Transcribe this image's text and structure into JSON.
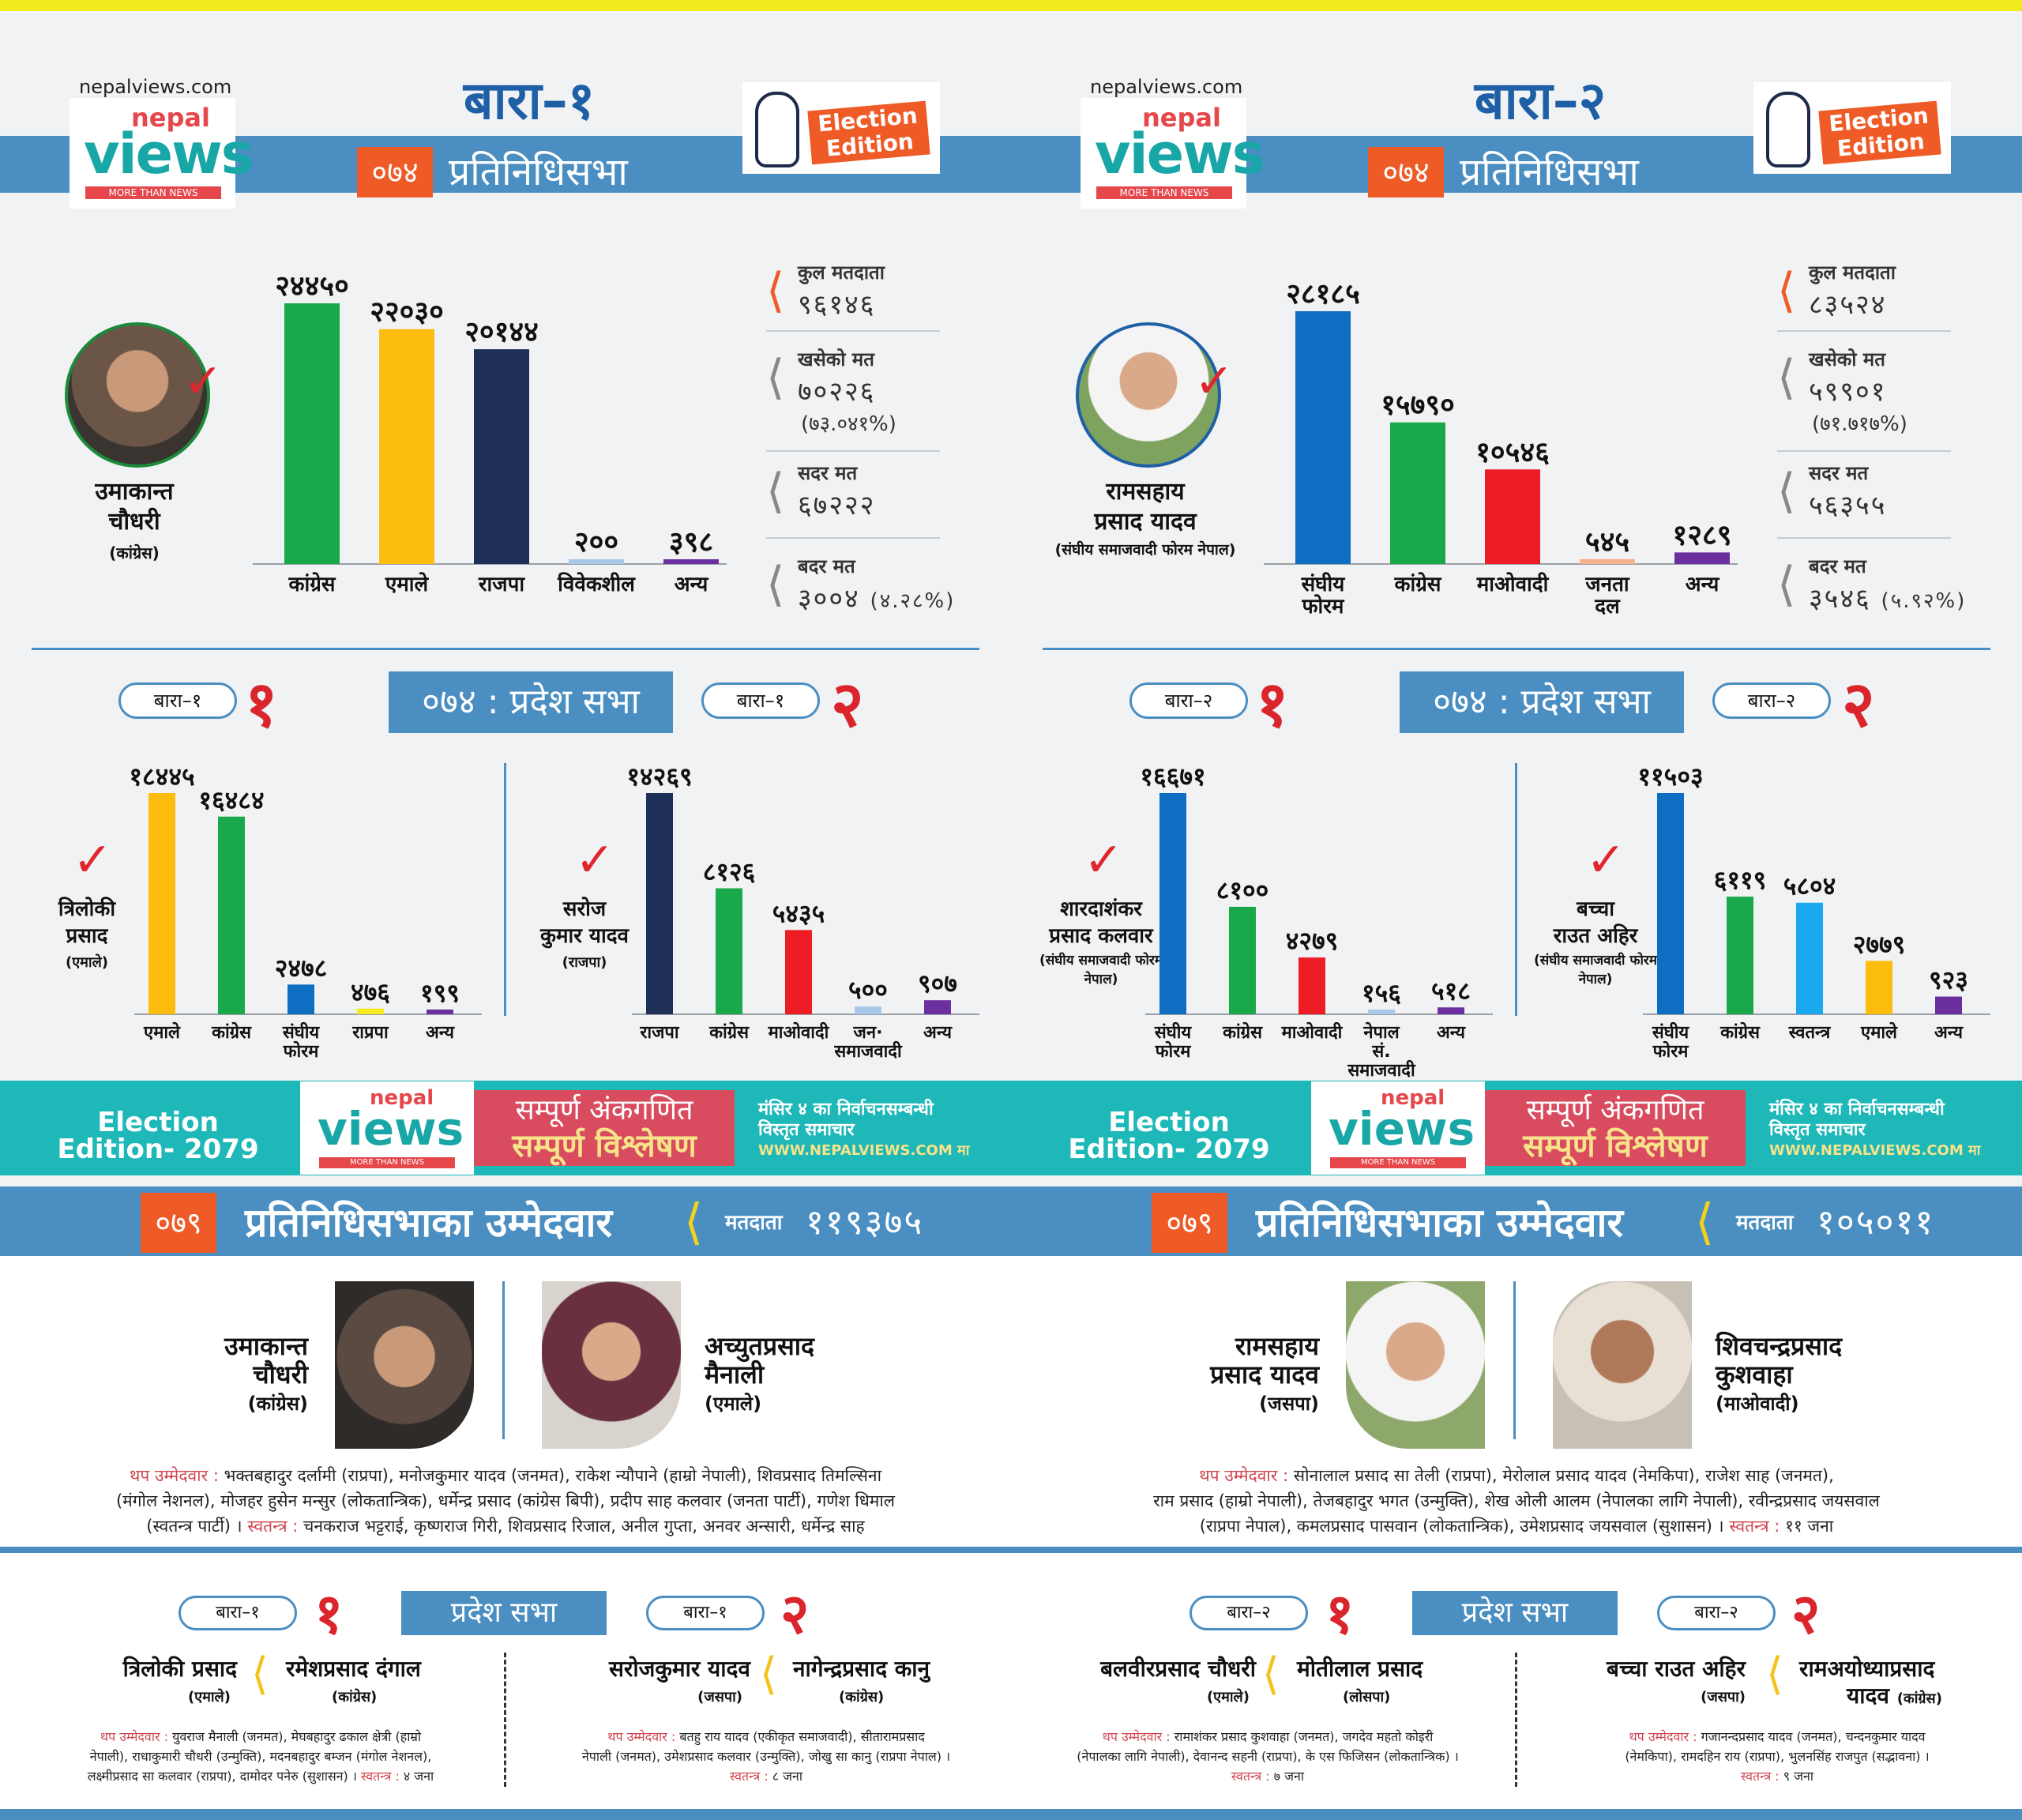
{
  "site": "nepalviews.com",
  "logo": {
    "nepal": "nepal",
    "views": "views",
    "tagline": "MORE THAN NEWS"
  },
  "election_tag": "Election Edition",
  "panels": [
    {
      "title": "बारा–१",
      "year": "०७४",
      "house_label": "प्रतिनिधिसभा",
      "winner": {
        "name_l1": "उमाकान्त",
        "name_l2": "चौधरी",
        "party": "(कांग्रेस)"
      },
      "stats": {
        "total_label": "कुल मतदाता",
        "total_value": "९६१४६",
        "cast_label": "खसेको मत",
        "cast_value": "७०२२६",
        "cast_pct": "(७३.०४१%)",
        "valid_label": "सदर मत",
        "valid_value": "६७२२२",
        "invalid_label": "बदर मत",
        "invalid_value": "३००४",
        "invalid_pct": "(४.२८%)"
      },
      "pradesh_label": "०७४ : प्रदेश सभा",
      "prov1": {
        "pill": "बारा–१",
        "num": "१",
        "winner_l1": "त्रिलोकी",
        "winner_l2": "प्रसाद",
        "party": "(एमाले)"
      },
      "prov2": {
        "pill": "बारा–१",
        "num": "२",
        "winner_l1": "सरोज",
        "winner_l2": "कुमार यादव",
        "party": "(राजपा)"
      }
    },
    {
      "title": "बारा–२",
      "year": "०७४",
      "house_label": "प्रतिनिधिसभा",
      "winner": {
        "name_l1": "रामसहाय",
        "name_l2": "प्रसाद यादव",
        "party": "(संघीय समाजवादी फोरम नेपाल)"
      },
      "stats": {
        "total_label": "कुल मतदाता",
        "total_value": "८३५२४",
        "cast_label": "खसेको मत",
        "cast_value": "५९९०१",
        "cast_pct": "(७१.७१७%)",
        "valid_label": "सदर मत",
        "valid_value": "५६३५५",
        "invalid_label": "बदर मत",
        "invalid_value": "३५४६",
        "invalid_pct": "(५.९२%)"
      },
      "pradesh_label": "०७४ : प्रदेश सभा",
      "prov1": {
        "pill": "बारा–२",
        "num": "१",
        "winner_l1": "शारदाशंकर",
        "winner_l2": "प्रसाद कलवार",
        "party": "(संघीय समाजवादी फोरम नेपाल)"
      },
      "prov2": {
        "pill": "बारा–२",
        "num": "२",
        "winner_l1": "बच्चा",
        "winner_l2": "राउत अहिर",
        "party": "(संघीय समाजवादी फोरम नेपाल)"
      }
    }
  ],
  "chart_data": [
    {
      "type": "bar",
      "id": "bara1-hor",
      "categories": [
        "कांग्रेस",
        "एमाले",
        "राजपा",
        "विवेकशील",
        "अन्य"
      ],
      "values": [
        24450,
        22030,
        20144,
        200,
        398
      ],
      "labels": [
        "२४४५०",
        "२२०३०",
        "२०१४४",
        "२००",
        "३९८"
      ],
      "colors": [
        "#19a94a",
        "#fcbd0f",
        "#1e3058",
        "#a8c8ea",
        "#6b2fa0"
      ]
    },
    {
      "type": "bar",
      "id": "bara1-p1",
      "categories": [
        "एमाले",
        "कांग्रेस",
        "संघीय फोरम",
        "राप्रपा",
        "अन्य"
      ],
      "values": [
        18445,
        16484,
        2478,
        476,
        199
      ],
      "labels": [
        "१८४४५",
        "१६४८४",
        "२४७८",
        "४७६",
        "१९९"
      ],
      "colors": [
        "#fcbd0f",
        "#19a94a",
        "#0e6ec2",
        "#f5ea1e",
        "#6b2fa0"
      ]
    },
    {
      "type": "bar",
      "id": "bara1-p2",
      "categories": [
        "राजपा",
        "कांग्रेस",
        "माओवादी",
        "जन· समाजवादी",
        "अन्य"
      ],
      "values": [
        14269,
        8126,
        5435,
        500,
        907
      ],
      "labels": [
        "१४२६९",
        "८१२६",
        "५४३५",
        "५००",
        "९०७"
      ],
      "colors": [
        "#1e3058",
        "#19a94a",
        "#ee1c24",
        "#a8c8ea",
        "#6b2fa0"
      ]
    },
    {
      "type": "bar",
      "id": "bara2-hor",
      "categories": [
        "संघीय फोरम",
        "कांग्रेस",
        "माओवादी",
        "जनता दल",
        "अन्य"
      ],
      "values": [
        28185,
        15790,
        10546,
        545,
        1289
      ],
      "labels": [
        "२८१८५",
        "१५७९०",
        "१०५४६",
        "५४५",
        "१२८९"
      ],
      "colors": [
        "#0e6ec2",
        "#19a94a",
        "#ee1c24",
        "#f6b28a",
        "#6b2fa0"
      ]
    },
    {
      "type": "bar",
      "id": "bara2-p1",
      "categories": [
        "संघीय फोरम",
        "कांग्रेस",
        "माओवादी",
        "नेपाल सं. समाजवादी",
        "अन्य"
      ],
      "values": [
        16671,
        8100,
        4279,
        156,
        518
      ],
      "labels": [
        "१६६७१",
        "८१००",
        "४२७९",
        "१५६",
        "५१८"
      ],
      "colors": [
        "#0e6ec2",
        "#19a94a",
        "#ee1c24",
        "#a8c8ea",
        "#6b2fa0"
      ]
    },
    {
      "type": "bar",
      "id": "bara2-p2",
      "categories": [
        "संघीय फोरम",
        "कांग्रेस",
        "स्वतन्त्र",
        "एमाले",
        "अन्य"
      ],
      "values": [
        11503,
        6119,
        5804,
        2779,
        923
      ],
      "labels": [
        "११५०३",
        "६११९",
        "५८०४",
        "२७७९",
        "९२३"
      ],
      "colors": [
        "#0e6ec2",
        "#19a94a",
        "#1aa9ef",
        "#fcbd0f",
        "#6b2fa0"
      ]
    }
  ],
  "banner": {
    "edition": "Election Edition- 2079",
    "red_l1": "सम्पूर्ण अंकगणित",
    "red_l2": "सम्पूर्ण विश्लेषण",
    "news_l1": "मंसिर ४ का निर्वाचनसम्बन्धी",
    "news_l2": "विस्तृत समाचार",
    "news_web": "WWW.NEPALVIEWS.COM मा"
  },
  "lower": [
    {
      "year": "०७९",
      "title": "प्रतिनिधिसभाका उम्मेदवार",
      "voters_label": "मतदाता",
      "voters_value": "११९३७५",
      "cand1": {
        "l1": "उमाकान्त",
        "l2": "चौधरी",
        "party": "(कांग्रेस)"
      },
      "cand2": {
        "l1": "अच्युतप्रसाद",
        "l2": "मैनाली",
        "party": "(एमाले)"
      },
      "others_key": "थप उम्मेदवार :",
      "others_l1": "भक्तबहादुर दर्लामी (राप्रपा), मनोजकुमार यादव (जनमत), राकेश न्यौपाने (हाम्रो नेपाली), शिवप्रसाद तिमल्सिना",
      "others_l2": "(मंगोल नेशनल), मोजहर हुसेन मन्सुर (लोकतान्त्रिक), धर्मेन्द्र प्रसाद (कांग्रेस बिपी), प्रदीप साह कलवार (जनता पार्टी), गणेश धिमाल",
      "others_l3a": "(स्वतन्त्र पार्टी) ।",
      "indep_key": "स्वतन्त्र :",
      "others_l3b": "चनकराज भट्टराई, कृष्णराज गिरी, शिवप्रसाद रिजाल, अनील गुप्ता, अनवर अन्सारी, धर्मेन्द्र साह",
      "pradesh_label": "प्रदेश सभा",
      "p1": {
        "pill": "बारा–१",
        "num": "१",
        "c1": "त्रिलोकी प्रसाद",
        "c1p": "(एमाले)",
        "c2": "रमेशप्रसाद दंगाल",
        "c2p": "(कांग्रेस)",
        "others_key": "थप उम्मेदवार :",
        "o1": "युवराज मैनाली (जनमत), मेघबहादुर ढकाल क्षेत्री (हाम्रो",
        "o2": "नेपाली), राधाकुमारी चौधरी (उन्मुक्ति), मदनबहादुर बम्जन (मंगोल नेशनल),",
        "o3": "लक्ष्मीप्रसाद सा कलवार (राप्रपा), दामोदर पनेरु (सुशासन) ।",
        "indep_key": "स्वतन्त्र :",
        "indep": "४ जना"
      },
      "p2": {
        "pill": "बारा–१",
        "num": "२",
        "c1": "सरोजकुमार यादव",
        "c1p": "(जसपा)",
        "c2": "नागेन्द्रप्रसाद कानु",
        "c2p": "(कांग्रेस)",
        "others_key": "थप उम्मेदवार :",
        "o1": "बतहु राय यादव (एकीकृत समाजवादी), सीतारामप्रसाद",
        "o2": "नेपाली (जनमत), उमेशप्रसाद कलवार (उन्मुक्ति), जोखु सा कानु (राप्रपा नेपाल) ।",
        "o3": "",
        "indep_key": "स्वतन्त्र :",
        "indep": "८ जना"
      }
    },
    {
      "year": "०७९",
      "title": "प्रतिनिधिसभाका उम्मेदवार",
      "voters_label": "मतदाता",
      "voters_value": "१०५०११",
      "cand1": {
        "l1": "रामसहाय",
        "l2": "प्रसाद यादव",
        "party": "(जसपा)"
      },
      "cand2": {
        "l1": "शिवचन्द्रप्रसाद",
        "l2": "कुशवाहा",
        "party": "(माओवादी)"
      },
      "others_key": "थप उम्मेदवार :",
      "others_l1": "सोनालाल प्रसाद सा तेली (राप्रपा), मेरोलाल प्रसाद यादव (नेमकिपा), राजेश साह (जनमत),",
      "others_l2": "राम प्रसाद (हाम्रो नेपाली), तेजबहादुर भगत (उन्मुक्ति), शेख ओली आलम (नेपालका लागि नेपाली), रवीन्द्रप्रसाद जयसवाल",
      "others_l3a": "(राप्रपा नेपाल), कमलप्रसाद पासवान (लोकतान्त्रिक), उमेशप्रसाद जयसवाल (सुशासन) ।",
      "indep_key": "स्वतन्त्र :",
      "others_l3b": "११ जना",
      "pradesh_label": "प्रदेश सभा",
      "p1": {
        "pill": "बारा–२",
        "num": "१",
        "c1": "बलवीरप्रसाद चौधरी",
        "c1p": "(एमाले)",
        "c2": "मोतीलाल प्रसाद",
        "c2p": "(लोसपा)",
        "others_key": "थप उम्मेदवार :",
        "o1": "रामाशंकर प्रसाद कुशवाहा (जनमत), जगदेव महतो कोइरी",
        "o2": "(नेपालका लागि नेपाली), देवानन्द सहनी (राप्रपा), के एस फिजिसन (लोकतान्त्रिक) ।",
        "o3": "",
        "indep_key": "स्वतन्त्र :",
        "indep": "७ जना"
      },
      "p2": {
        "pill": "बारा–२",
        "num": "२",
        "c1": "बच्चा राउत अहिर",
        "c1p": "(जसपा)",
        "c2": "रामअयोध्याप्रसाद",
        "c2b": "यादव",
        "c2p": "(कांग्रेस)",
        "others_key": "थप उम्मेदवार :",
        "o1": "गजानन्दप्रसाद यादव (जनमत), चन्दनकुमार यादव",
        "o2": "(नेमकिपा), रामदहिन राय (राप्रपा), भुलनसिंह राजपुत (सद्भावना) ।",
        "o3": "",
        "indep_key": "स्वतन्त्र :",
        "indep": "९ जना"
      }
    }
  ]
}
